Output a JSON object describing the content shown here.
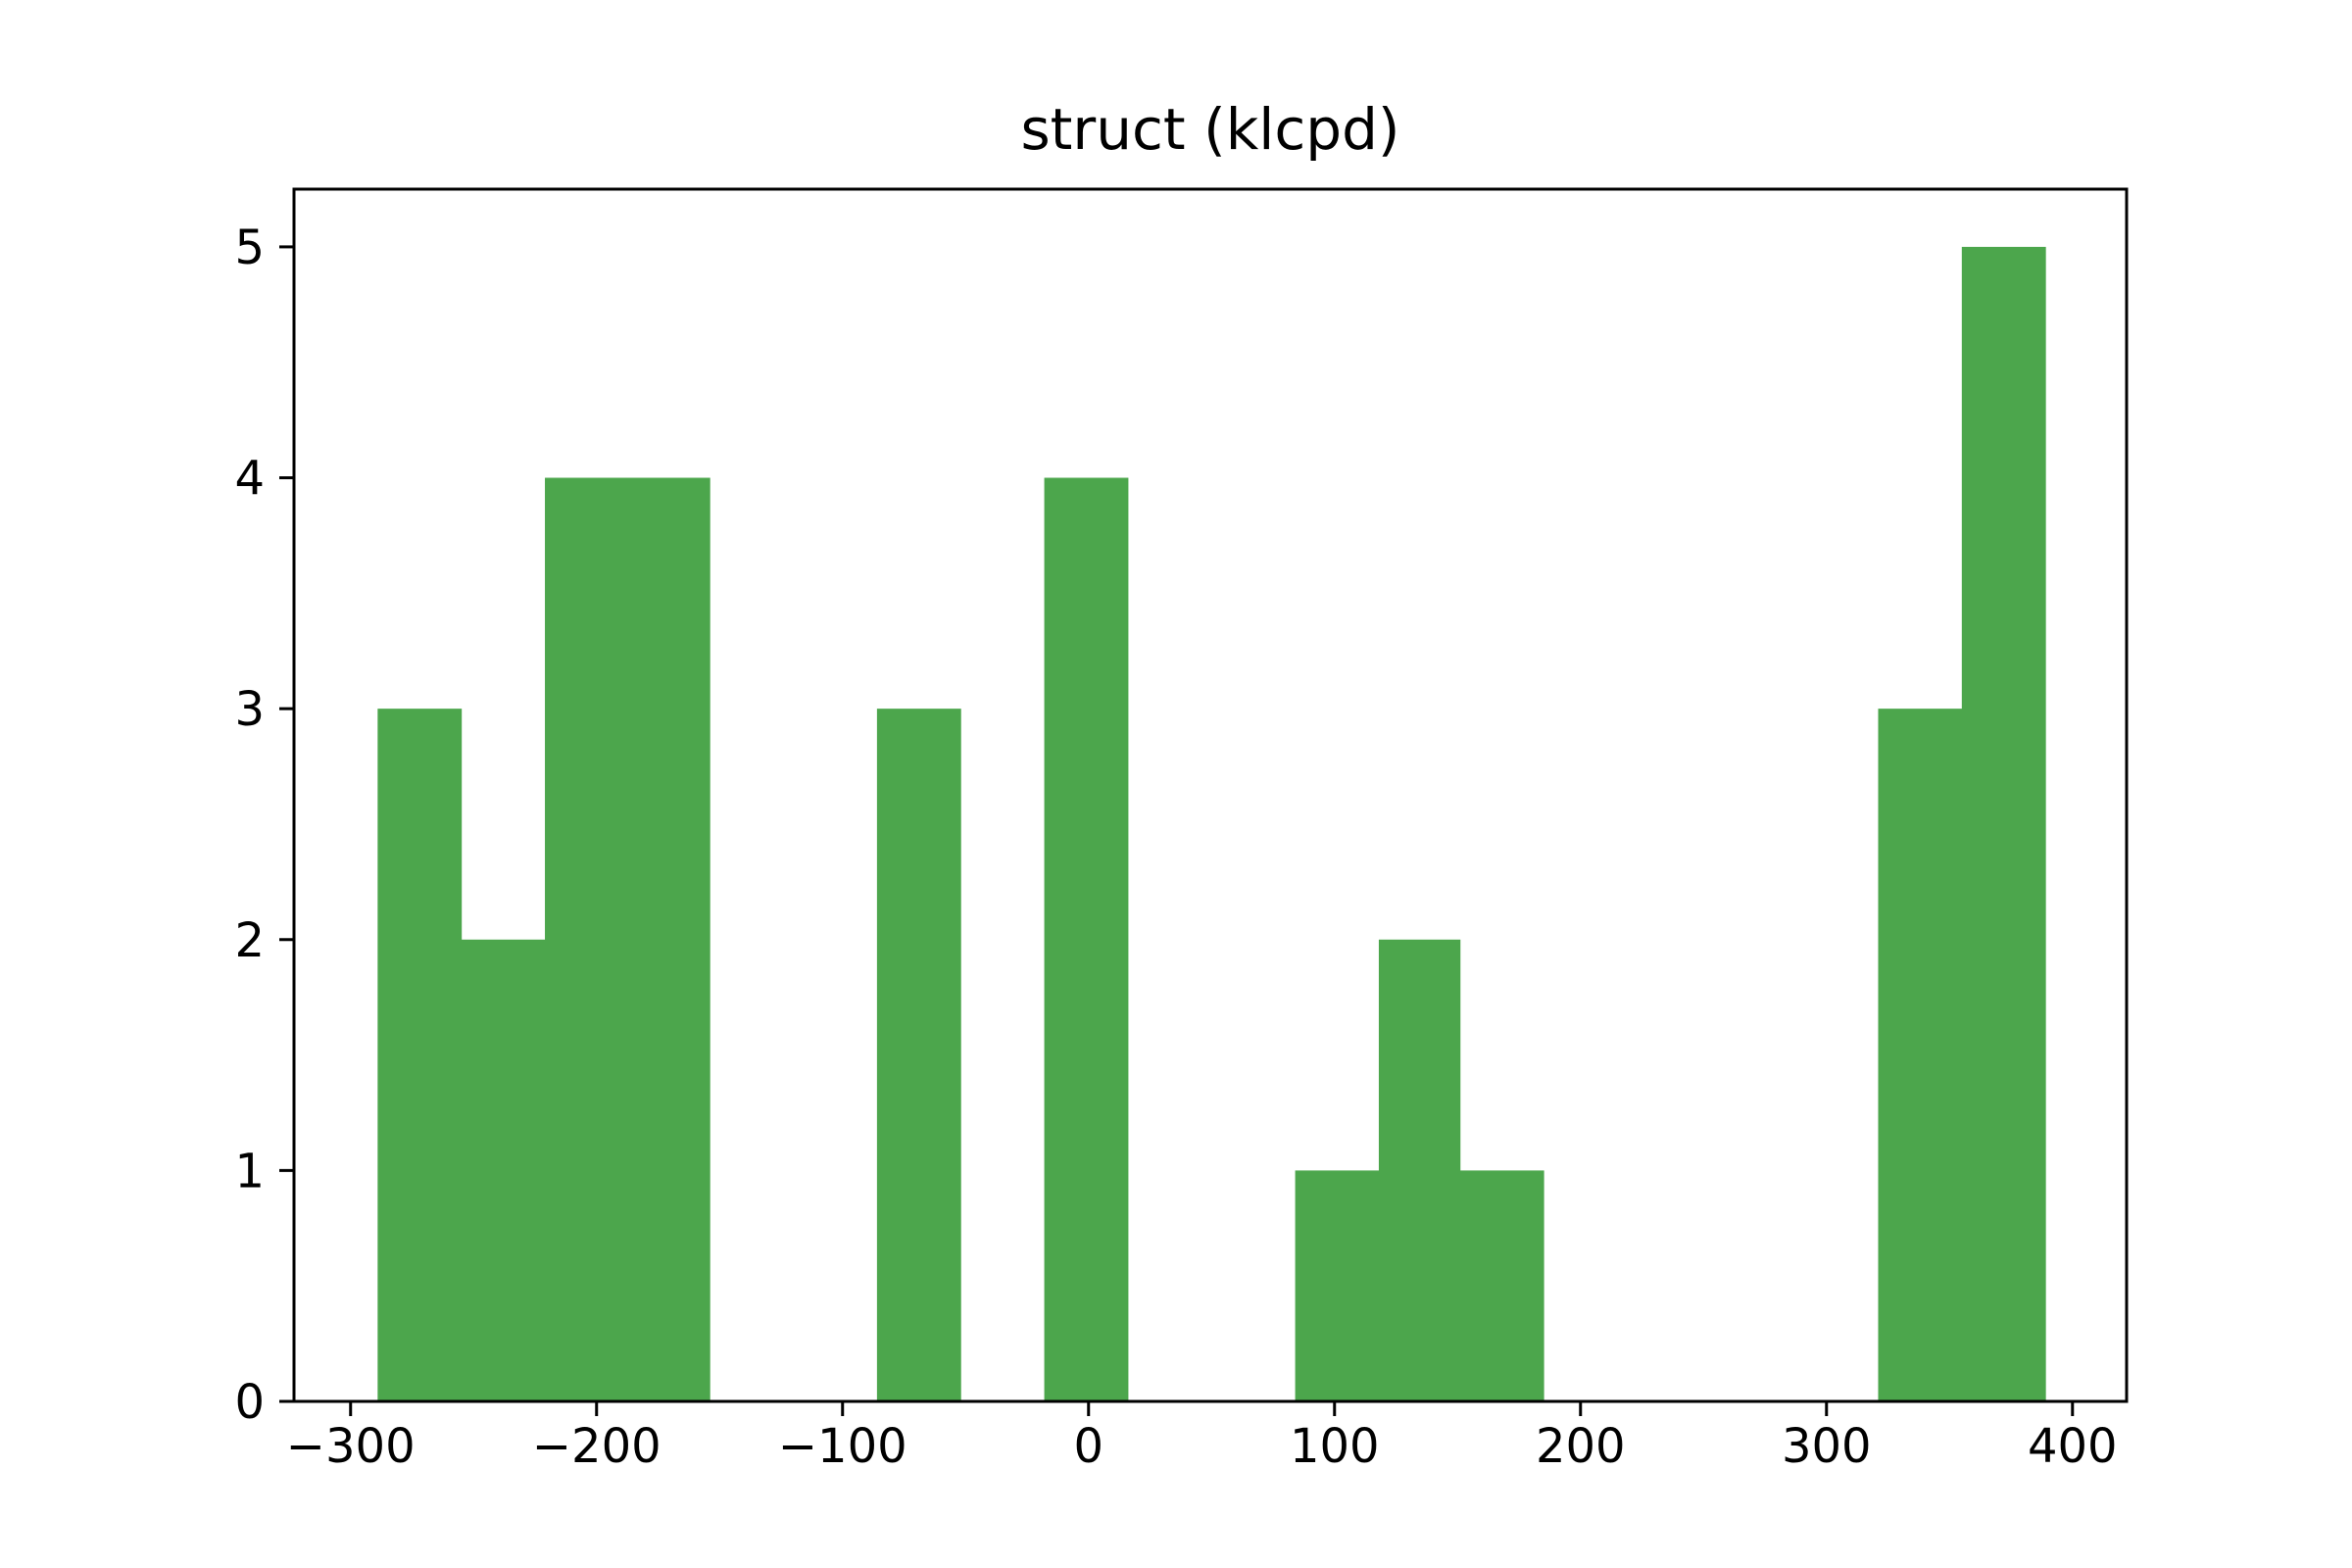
{
  "chart_data": {
    "type": "bar",
    "title": "struct (klcpd)",
    "xlabel": "",
    "ylabel": "",
    "xlim": [
      -323,
      422
    ],
    "ylim": [
      0,
      5.25
    ],
    "xticks": [
      -300,
      -200,
      -100,
      0,
      100,
      200,
      300,
      400
    ],
    "xtick_labels": [
      "−300",
      "−200",
      "−100",
      "0",
      "100",
      "200",
      "300",
      "400"
    ],
    "yticks": [
      0,
      1,
      2,
      3,
      4,
      5
    ],
    "ytick_labels": [
      "0",
      "1",
      "2",
      "3",
      "4",
      "5"
    ],
    "grid": false,
    "legend": "none",
    "bar_color": "#4ca64c",
    "bins": [
      {
        "x0": -289,
        "x1": -255,
        "count": 3
      },
      {
        "x0": -255,
        "x1": -221,
        "count": 2
      },
      {
        "x0": -221,
        "x1": -188,
        "count": 4
      },
      {
        "x0": -188,
        "x1": -154,
        "count": 4
      },
      {
        "x0": -154,
        "x1": -120,
        "count": 0
      },
      {
        "x0": -120,
        "x1": -86,
        "count": 0
      },
      {
        "x0": -86,
        "x1": -52,
        "count": 3
      },
      {
        "x0": -52,
        "x1": -18,
        "count": 0
      },
      {
        "x0": -18,
        "x1": 16,
        "count": 4
      },
      {
        "x0": 16,
        "x1": 50,
        "count": 0
      },
      {
        "x0": 50,
        "x1": 84,
        "count": 0
      },
      {
        "x0": 84,
        "x1": 118,
        "count": 1
      },
      {
        "x0": 118,
        "x1": 151,
        "count": 2
      },
      {
        "x0": 151,
        "x1": 185,
        "count": 1
      },
      {
        "x0": 185,
        "x1": 219,
        "count": 0
      },
      {
        "x0": 219,
        "x1": 253,
        "count": 0
      },
      {
        "x0": 253,
        "x1": 287,
        "count": 0
      },
      {
        "x0": 287,
        "x1": 321,
        "count": 0
      },
      {
        "x0": 321,
        "x1": 355,
        "count": 3
      },
      {
        "x0": 355,
        "x1": 389,
        "count": 5
      }
    ]
  }
}
